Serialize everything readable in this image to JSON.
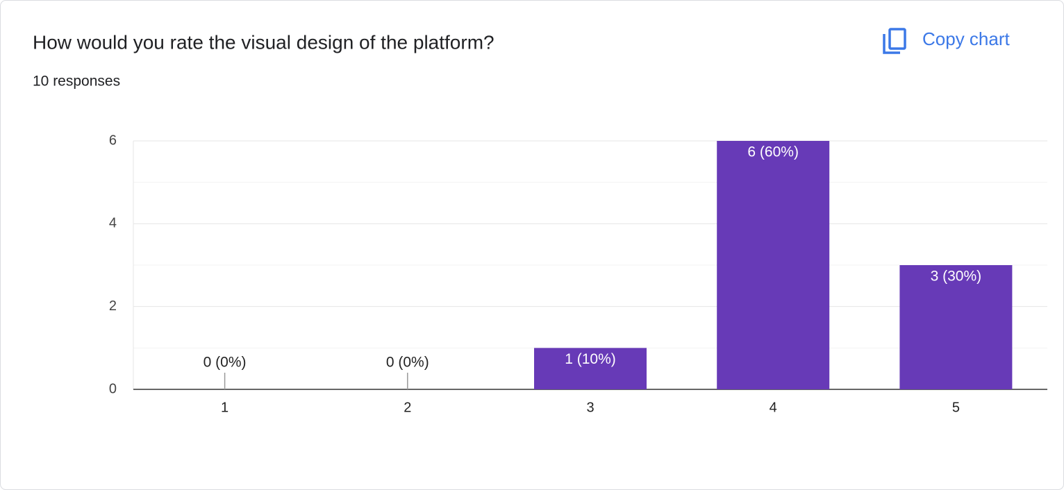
{
  "chart_data": {
    "type": "bar",
    "title": "How would you rate the visual design of the platform?",
    "subtitle": "10 responses",
    "button": "Copy chart",
    "categories": [
      "1",
      "2",
      "3",
      "4",
      "5"
    ],
    "values": [
      0,
      0,
      1,
      6,
      3
    ],
    "value_labels": [
      "0 (0%)",
      "0 (0%)",
      "1 (10%)",
      "6 (60%)",
      "3 (30%)"
    ],
    "color": "#673ab7",
    "ylim": [
      0,
      6
    ],
    "yticks": [
      0,
      2,
      4,
      6
    ],
    "minor_yticks": [
      1,
      3,
      5
    ],
    "grid": true
  }
}
